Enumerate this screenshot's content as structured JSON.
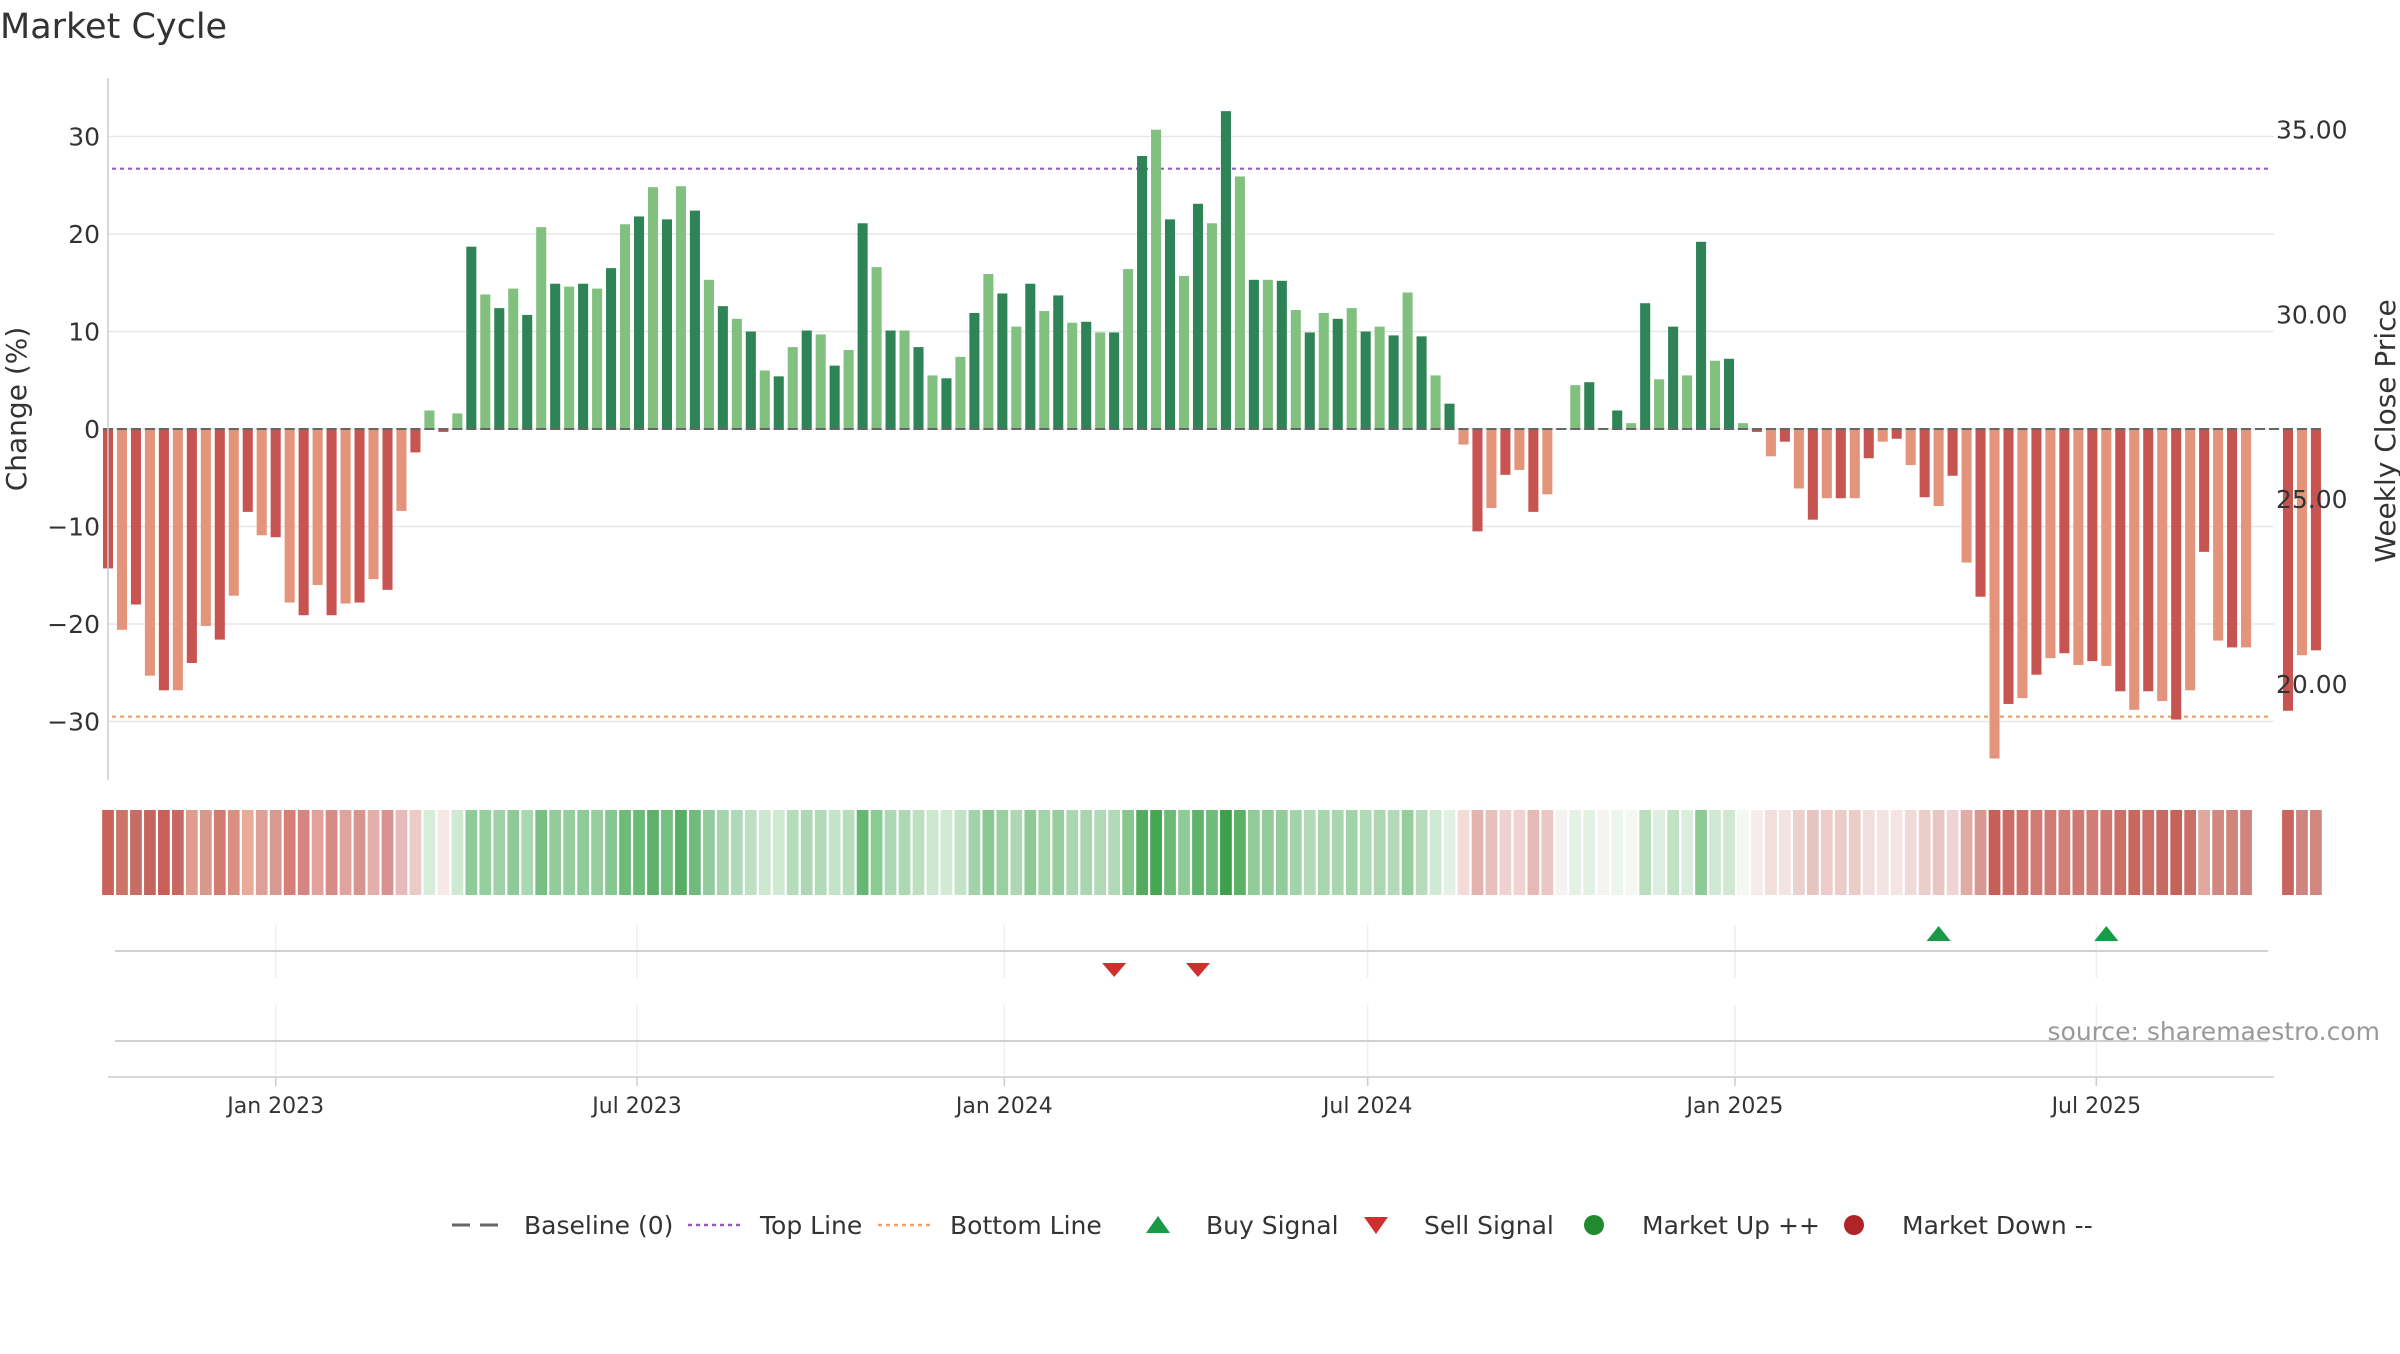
{
  "chart_data": {
    "type": "bar",
    "title": "Market Cycle",
    "ylabel": "Change (%)",
    "y2label": "Weekly Close Price",
    "ylim": [
      -36,
      36
    ],
    "y2lim": [
      17.4,
      36.4
    ],
    "yticks": [
      -30,
      -20,
      -10,
      0,
      10,
      20,
      30
    ],
    "yticklabels": [
      "−30",
      "−20",
      "−10",
      "0",
      "10",
      "20",
      "30"
    ],
    "y2ticks": [
      20,
      25,
      30,
      35
    ],
    "y2ticklabels": [
      "20.00",
      "25.00",
      "30.00",
      "35.00"
    ],
    "xlim": [
      "2022-10-09",
      "2025-09-28"
    ],
    "xticks": [
      "2023-01-01",
      "2023-07-01",
      "2024-01-01",
      "2024-07-01",
      "2025-01-01",
      "2025-07-01"
    ],
    "xticklabels": [
      "Jan 2023",
      "Jul 2023",
      "Jan 2024",
      "Jul 2024",
      "Jan 2025",
      "Jul 2025"
    ],
    "first_week": "2022-10-09",
    "week_days": 7,
    "top_line": 26.7,
    "bottom_line": -29.5,
    "baseline": 0,
    "grid": true,
    "change_values": [
      -14.3,
      -20.6,
      -18,
      -25.3,
      -26.8,
      -26.8,
      -24,
      -20.2,
      -21.6,
      -17.1,
      -8.5,
      -10.9,
      -11.1,
      -17.8,
      -19.1,
      -16,
      -19.1,
      -17.9,
      -17.8,
      -15.4,
      -16.5,
      -8.4,
      -2.4,
      1.9,
      -0.3,
      1.6,
      18.7,
      13.8,
      12.4,
      14.4,
      11.7,
      20.7,
      14.9,
      14.6,
      14.9,
      14.4,
      16.5,
      21,
      21.8,
      24.8,
      21.5,
      24.9,
      22.4,
      15.3,
      12.6,
      11.3,
      10,
      6,
      5.4,
      8.4,
      10.1,
      9.7,
      6.5,
      8.1,
      21.1,
      16.6,
      10.1,
      10.1,
      8.4,
      5.5,
      5.2,
      7.4,
      11.9,
      15.9,
      13.9,
      10.5,
      14.9,
      12.1,
      13.7,
      10.9,
      11,
      9.9,
      9.9,
      16.4,
      28,
      30.7,
      21.5,
      15.7,
      23.1,
      21.1,
      32.6,
      25.9,
      15.3,
      15.3,
      15.2,
      12.2,
      9.9,
      11.9,
      11.3,
      12.4,
      10,
      10.5,
      9.6,
      14,
      9.5,
      5.5,
      2.6,
      -1.6,
      -10.5,
      -8.1,
      -4.7,
      -4.2,
      -8.5,
      -6.7,
      0.1,
      4.5,
      4.8,
      0.1,
      1.9,
      0.6,
      12.9,
      5.1,
      10.5,
      5.5,
      19.2,
      7,
      7.2,
      0.6,
      -0.3,
      -2.8,
      -1.3,
      -6.1,
      -9.3,
      -7.1,
      -7.1,
      -7.1,
      -3,
      -1.3,
      -1,
      -3.7,
      -7,
      -7.9,
      -4.8,
      -13.7,
      -17.2,
      -33.8,
      -28.2,
      -27.6,
      -25.2,
      -23.5,
      -23,
      -24.2,
      -23.8,
      -24.3,
      -26.9,
      -28.8,
      -26.9,
      -27.9,
      -29.8,
      -26.8,
      -12.6,
      -21.7,
      -22.4,
      -22.4,
      0,
      0,
      -28.9,
      -23.2,
      -22.7
    ],
    "cycle_bands": [
      "#c96359",
      "#cd7468",
      "#c66d66",
      "#c4645e",
      "#c95f59",
      "#c56962",
      "#e09c8c",
      "#d69a8c",
      "#d37a73",
      "#d89082",
      "#e8ab9a",
      "#dea096",
      "#d79a90",
      "#d77e79",
      "#d58583",
      "#e2a29b",
      "#d78b87",
      "#e0a49f",
      "#d7958f",
      "#e4aeaa",
      "#d8928f",
      "#e7bbb9",
      "#eccac6",
      "#d8ecda",
      "#f6e8e7",
      "#cfe9d4",
      "#8fcb99",
      "#95cf9e",
      "#9ed1a5",
      "#8dca97",
      "#a8d8af",
      "#78bf84",
      "#91cc9a",
      "#95ce9d",
      "#8fca98",
      "#96cd9e",
      "#86c690",
      "#6eba79",
      "#6bba77",
      "#5db16a",
      "#75c080",
      "#57ad64",
      "#70bb7c",
      "#93cc9c",
      "#a6d5ad",
      "#b0dab7",
      "#bde0c3",
      "#cce8d0",
      "#cfe9d3",
      "#b6dcbb",
      "#aed8b4",
      "#b2dab7",
      "#c3e4c8",
      "#b7ddbc",
      "#65b771",
      "#8acb94",
      "#add8b3",
      "#aed8b4",
      "#bde0c1",
      "#cde8d1",
      "#d1ead4",
      "#c3e3c7",
      "#a4d3ab",
      "#8bc894",
      "#9ad0a1",
      "#aed7b3",
      "#8ec996",
      "#a3d3aa",
      "#98ce9f",
      "#aad6b0",
      "#a9d6af",
      "#b1d9b6",
      "#b2d9b7",
      "#86c78f",
      "#52ac5e",
      "#46a753",
      "#6bbb76",
      "#8fcb97",
      "#60b36c",
      "#6ebc79",
      "#3ea04c",
      "#5bb166",
      "#90cb98",
      "#90cb98",
      "#92cc9a",
      "#a2d3a9",
      "#b2dab6",
      "#a7d5ad",
      "#a9d6ae",
      "#a2d3a8",
      "#b0d9b5",
      "#acd7b1",
      "#b4dab9",
      "#96cd9d",
      "#b6dcba",
      "#d0e9d3",
      "#e2f1e3",
      "#f3dbd8",
      "#e3b3ad",
      "#e7c0bb",
      "#eed2cf",
      "#efd4d1",
      "#e5bab6",
      "#ebc7c4",
      "#f5f2f2",
      "#e3f2e4",
      "#e1f1e2",
      "#f5f2f2",
      "#ecf6ed",
      "#f3f8f3",
      "#b9dfbe",
      "#dcefde",
      "#c1e2c5",
      "#dbeedd",
      "#8dcb95",
      "#d0e9d2",
      "#cfe8d1",
      "#f3f8f3",
      "#f6ecec",
      "#f1dedd",
      "#f3e3e2",
      "#ecd0cd",
      "#e8c4c1",
      "#eccbc9",
      "#ecccc9",
      "#ecccc9",
      "#f2dedd",
      "#f3e3e2",
      "#f4e5e4",
      "#f0dad8",
      "#ebcdca",
      "#e8c6c3",
      "#eed5d3",
      "#e0aca6",
      "#d69890",
      "#c55f58",
      "#cb6d66",
      "#ce726b",
      "#d07a73",
      "#cf7a73",
      "#d17f78",
      "#cf7972",
      "#d07d76",
      "#cf7871",
      "#cc6f68",
      "#c9675f",
      "#cb6f68",
      "#c86a63",
      "#c5625a",
      "#cb6e67",
      "#e0a79f",
      "#d28880",
      "#d1847c",
      "#d0847d",
      null,
      null,
      "#c8655e",
      "#d0847d",
      "#d1877f"
    ],
    "buy_signals": [
      "2025-04-13",
      "2025-07-06"
    ],
    "sell_signals": [
      "2024-02-25",
      "2024-04-07"
    ],
    "colors": {
      "up_strong": "#2e8456",
      "up_light": "#82c07f",
      "down_strong": "#c85451",
      "down_light": "#e4947a",
      "top_line": "#9c56c6",
      "bottom_line": "#f0a168",
      "buy": "#1a9a47",
      "sell": "#d12e2e",
      "market_up": "#1f8a2e",
      "market_down": "#b02428",
      "baseline": "#666666"
    },
    "legend": {
      "placement": "bottom-center",
      "items": [
        {
          "label": "Baseline (0)",
          "symbol": "dash",
          "color": "#666666"
        },
        {
          "label": "Top Line",
          "symbol": "dotted-line",
          "color": "#9c56c6"
        },
        {
          "label": "Bottom Line",
          "symbol": "dotted-line",
          "color": "#f0a168"
        },
        {
          "label": "Buy Signal",
          "symbol": "triangle-up",
          "color": "#1a9a47"
        },
        {
          "label": "Sell Signal",
          "symbol": "triangle-down",
          "color": "#d12e2e"
        },
        {
          "label": "Market Up ++",
          "symbol": "circle",
          "color": "#1f8a2e"
        },
        {
          "label": "Market Down --",
          "symbol": "circle",
          "color": "#b02428"
        }
      ]
    },
    "source_note": "source: sharemaestro.com"
  }
}
